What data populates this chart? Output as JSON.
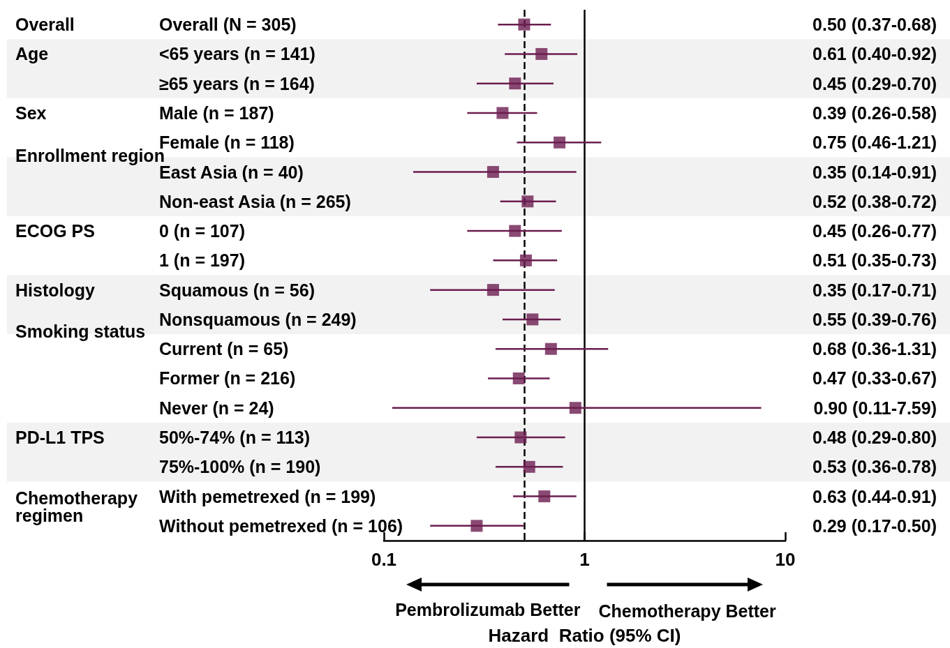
{
  "chart_data": {
    "type": "scatter",
    "orientation": "horizontal",
    "xlabel": "Hazard  Ratio (95% CI)",
    "categories": [
      "Overall (N = 305)",
      "<65 years (n = 141)",
      "≥65 years (n = 164)",
      "Male (n = 187)",
      "Female (n = 118)",
      "East Asia (n = 40)",
      "Non-east Asia (n = 265)",
      "0 (n = 107)",
      "1 (n = 197)",
      "Squamous (n = 56)",
      "Nonsquamous (n = 249)",
      "Current (n = 65)",
      "Former (n = 216)",
      "Never (n = 24)",
      "50%-74% (n = 113)",
      "75%-100% (n = 190)",
      "With pemetrexed (n = 199)",
      "Without pemetrexed (n = 106)"
    ],
    "values": [
      0.5,
      0.61,
      0.45,
      0.39,
      0.75,
      0.35,
      0.52,
      0.45,
      0.51,
      0.35,
      0.55,
      0.68,
      0.47,
      0.9,
      0.48,
      0.53,
      0.63,
      0.29
    ],
    "errors": [
      [
        0.37,
        0.68
      ],
      [
        0.4,
        0.92
      ],
      [
        0.29,
        0.7
      ],
      [
        0.26,
        0.58
      ],
      [
        0.46,
        1.21
      ],
      [
        0.14,
        0.91
      ],
      [
        0.38,
        0.72
      ],
      [
        0.26,
        0.77
      ],
      [
        0.35,
        0.73
      ],
      [
        0.17,
        0.71
      ],
      [
        0.39,
        0.76
      ],
      [
        0.36,
        1.31
      ],
      [
        0.33,
        0.67
      ],
      [
        0.11,
        7.59
      ],
      [
        0.29,
        0.8
      ],
      [
        0.36,
        0.78
      ],
      [
        0.44,
        0.91
      ],
      [
        0.17,
        0.5
      ]
    ],
    "value_labels": [
      "0.50 (0.37-0.68)",
      "0.61 (0.40-0.92)",
      "0.45 (0.29-0.70)",
      "0.39 (0.26-0.58)",
      "0.75 (0.46-1.21)",
      "0.35 (0.14-0.91)",
      "0.52 (0.38-0.72)",
      "0.45 (0.26-0.77)",
      "0.51 (0.35-0.73)",
      "0.35 (0.17-0.71)",
      "0.55 (0.39-0.76)",
      "0.68 (0.36-1.31)",
      "0.47 (0.33-0.67)",
      "0.90 (0.11-7.59)",
      "0.48 (0.29-0.80)",
      "0.53 (0.36-0.78)",
      "0.63 (0.44-0.91)",
      "0.29 (0.17-0.50)"
    ],
    "color": "#6b1d50",
    "marker": "square",
    "log": "x",
    "xlim": [
      0.1,
      10
    ],
    "xticks": [
      0.1,
      1,
      10
    ],
    "ref_lines": [
      {
        "axis": "x",
        "value": 1,
        "color": "#000000",
        "line_style": "solid"
      },
      {
        "axis": "x",
        "value": 0.5,
        "color": "#000000",
        "line_style": "dashed"
      }
    ],
    "bands": [
      {
        "axis": "y",
        "from": "<65 years (n = 141)",
        "to": "≥65 years (n = 164)",
        "color": "#f2f2f2"
      },
      {
        "axis": "y",
        "from": "East Asia (n = 40)",
        "to": "Non-east Asia (n = 265)",
        "color": "#f2f2f2"
      },
      {
        "axis": "y",
        "from": "Squamous (n = 56)",
        "to": "Nonsquamous (n = 249)",
        "color": "#f2f2f2"
      },
      {
        "axis": "y",
        "from": "50%-74% (n = 113)",
        "to": "75%-100% (n = 190)",
        "color": "#f2f2f2"
      }
    ],
    "annotations": [
      "Overall",
      "Age",
      "Sex",
      "Enrollment region",
      "ECOG PS",
      "Histology",
      "Smoking status",
      "PD-L1 TPS",
      "Chemotherapy regimen",
      "Pembrolizumab Better",
      "Chemotherapy Better"
    ],
    "grid": false
  }
}
